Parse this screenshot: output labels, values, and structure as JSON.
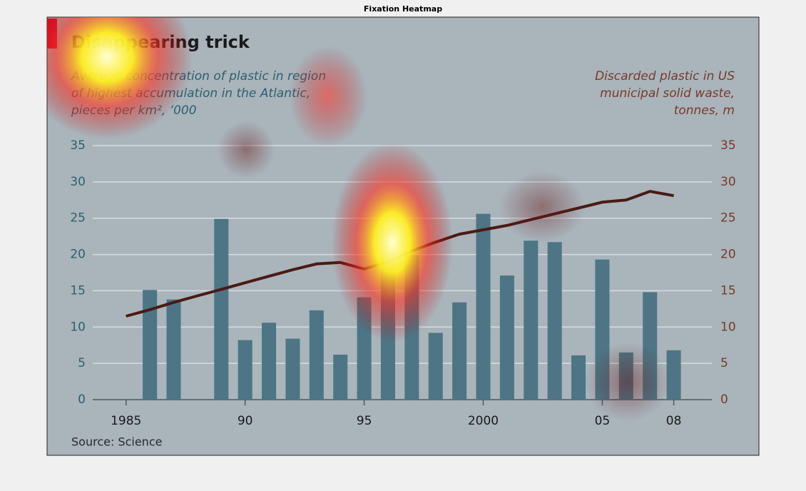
{
  "page_title": "Fixation Heatmap",
  "chart_data": {
    "type": "bar",
    "title": "Disappearing trick",
    "subtitle_left": [
      "Average concentration of plastic in region",
      "of highest accumulation in the Atlantic,",
      "pieces per km², ‘000"
    ],
    "subtitle_right": [
      "Discarded plastic in US",
      "municipal solid waste,",
      "tonnes, m"
    ],
    "source": "Source: Science",
    "xlim": [
      1983.6,
      2009.6
    ],
    "xticks": [
      1985,
      {
        "value": 1990,
        "label": "90"
      },
      {
        "value": 1995,
        "label": "95"
      },
      2000,
      {
        "value": 2005,
        "label": "05"
      },
      {
        "value": 2008,
        "label": "08"
      }
    ],
    "ylim": [
      0,
      35
    ],
    "yticks": [
      0,
      5,
      10,
      15,
      20,
      25,
      30,
      35
    ],
    "y2lim": [
      0,
      35
    ],
    "y2ticks": [
      0,
      5,
      10,
      15,
      20,
      25,
      30,
      35
    ],
    "grid": true,
    "series": [
      {
        "type": "bar",
        "color": "#4d7585",
        "x": [
          1986,
          1987,
          1989,
          1990,
          1991,
          1992,
          1993,
          1994,
          1995,
          1996,
          1997,
          1998,
          1999,
          2000,
          2001,
          2002,
          2003,
          2004,
          2005,
          2006,
          2007,
          2008
        ],
        "values": [
          15.1,
          13.8,
          24.9,
          8.2,
          10.6,
          8.4,
          12.3,
          6.2,
          14.1,
          23.6,
          19.9,
          9.2,
          13.4,
          25.6,
          17.1,
          21.9,
          21.7,
          6.1,
          19.3,
          6.5,
          14.8,
          6.8
        ]
      },
      {
        "type": "line",
        "axis": "y2",
        "color": "#4a1a14",
        "x": [
          1985,
          1986,
          1987,
          1988,
          1989,
          1990,
          1991,
          1992,
          1993,
          1994,
          1995,
          1996,
          1997,
          1998,
          1999,
          2000,
          2001,
          2002,
          2003,
          2004,
          2005,
          2006,
          2007,
          2008
        ],
        "values": [
          11.5,
          12.4,
          13.4,
          14.3,
          15.2,
          16.1,
          17.0,
          17.9,
          18.7,
          18.9,
          18.0,
          19.0,
          20.5,
          21.7,
          22.8,
          23.4,
          24.0,
          24.8,
          25.6,
          26.4,
          27.2,
          27.5,
          28.7,
          28.1
        ]
      }
    ]
  }
}
